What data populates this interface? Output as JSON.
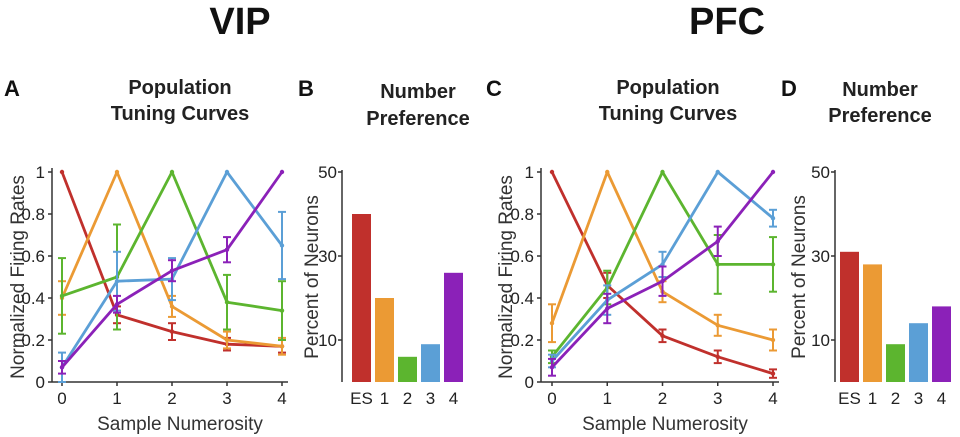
{
  "colors": {
    "ES": "#c0302c",
    "1": "#eb9a34",
    "2": "#5cb52f",
    "3": "#5b9fd6",
    "4": "#8b21b8"
  },
  "headers": {
    "left": "VIP",
    "right": "PFC"
  },
  "panels": {
    "A": {
      "letter": "A",
      "title_line1": "Population",
      "title_line2": "Tuning Curves"
    },
    "B": {
      "letter": "B",
      "title_line1": "Number",
      "title_line2": "Preference"
    },
    "C": {
      "letter": "C",
      "title_line1": "Population",
      "title_line2": "Tuning Curves"
    },
    "D": {
      "letter": "D",
      "title_line1": "Number",
      "title_line2": "Preference"
    }
  },
  "chart_data": [
    {
      "id": "A",
      "type": "line",
      "xlabel": "Sample Numerosity",
      "ylabel": "Normalized Firing Rates",
      "x": [
        0,
        1,
        2,
        3,
        4
      ],
      "xticks": [
        "0",
        "1",
        "2",
        "3",
        "4"
      ],
      "ylim": [
        0,
        1
      ],
      "yticks": [
        "0",
        "0.2",
        "0.4",
        "0.6",
        "0.8",
        "1"
      ],
      "series": [
        {
          "name": "0",
          "color_key": "ES",
          "values": [
            1.0,
            0.32,
            0.24,
            0.18,
            0.17
          ],
          "err": [
            0,
            0.04,
            0.04,
            0.03,
            0.03
          ]
        },
        {
          "name": "1",
          "color_key": "1",
          "values": [
            0.4,
            1.0,
            0.36,
            0.2,
            0.17
          ],
          "err": [
            0.08,
            0,
            0.05,
            0.04,
            0.04
          ]
        },
        {
          "name": "2",
          "color_key": "2",
          "values": [
            0.41,
            0.5,
            1.0,
            0.38,
            0.34
          ],
          "err": [
            0.18,
            0.25,
            0,
            0.13,
            0.14
          ]
        },
        {
          "name": "3",
          "color_key": "3",
          "values": [
            0.07,
            0.48,
            0.49,
            1.0,
            0.65
          ],
          "err": [
            0.07,
            0.14,
            0.1,
            0,
            0.16
          ]
        },
        {
          "name": "4",
          "color_key": "4",
          "values": [
            0.07,
            0.37,
            0.53,
            0.63,
            1.0
          ],
          "err": [
            0.03,
            0.04,
            0.05,
            0.06,
            0
          ]
        }
      ]
    },
    {
      "id": "B",
      "type": "bar",
      "ylabel": "Percent of Neurons",
      "categories": [
        "ES",
        "1",
        "2",
        "3",
        "4"
      ],
      "values": [
        40,
        20,
        6,
        9,
        26
      ],
      "ylim": [
        0,
        50
      ],
      "yticks": [
        "10",
        "30",
        "50"
      ],
      "ytick_values": [
        10,
        30,
        50
      ]
    },
    {
      "id": "C",
      "type": "line",
      "xlabel": "Sample Numerosity",
      "ylabel": "Normalized Firing Rates",
      "x": [
        0,
        1,
        2,
        3,
        4
      ],
      "xticks": [
        "0",
        "1",
        "2",
        "3",
        "4"
      ],
      "ylim": [
        0,
        1
      ],
      "yticks": [
        "0",
        "0.2",
        "0.4",
        "0.6",
        "0.8",
        "1"
      ],
      "series": [
        {
          "name": "0",
          "color_key": "ES",
          "values": [
            1.0,
            0.46,
            0.22,
            0.12,
            0.04
          ],
          "err": [
            0,
            0.06,
            0.03,
            0.03,
            0.02
          ]
        },
        {
          "name": "1",
          "color_key": "1",
          "values": [
            0.28,
            1.0,
            0.43,
            0.27,
            0.2
          ],
          "err": [
            0.09,
            0,
            0.05,
            0.05,
            0.05
          ]
        },
        {
          "name": "2",
          "color_key": "2",
          "values": [
            0.12,
            0.45,
            1.0,
            0.56,
            0.56
          ],
          "err": [
            0.03,
            0.08,
            0,
            0.14,
            0.13
          ]
        },
        {
          "name": "3",
          "color_key": "3",
          "values": [
            0.1,
            0.39,
            0.56,
            1.0,
            0.78
          ],
          "err": [
            0.03,
            0.07,
            0.06,
            0,
            0.04
          ]
        },
        {
          "name": "4",
          "color_key": "4",
          "values": [
            0.07,
            0.35,
            0.48,
            0.67,
            1.0
          ],
          "err": [
            0.04,
            0.07,
            0.07,
            0.07,
            0
          ]
        }
      ]
    },
    {
      "id": "D",
      "type": "bar",
      "ylabel": "Percent of Neurons",
      "categories": [
        "ES",
        "1",
        "2",
        "3",
        "4"
      ],
      "values": [
        31,
        28,
        9,
        14,
        18
      ],
      "ylim": [
        0,
        50
      ],
      "yticks": [
        "10",
        "30",
        "50"
      ],
      "ytick_values": [
        10,
        30,
        50
      ]
    }
  ]
}
